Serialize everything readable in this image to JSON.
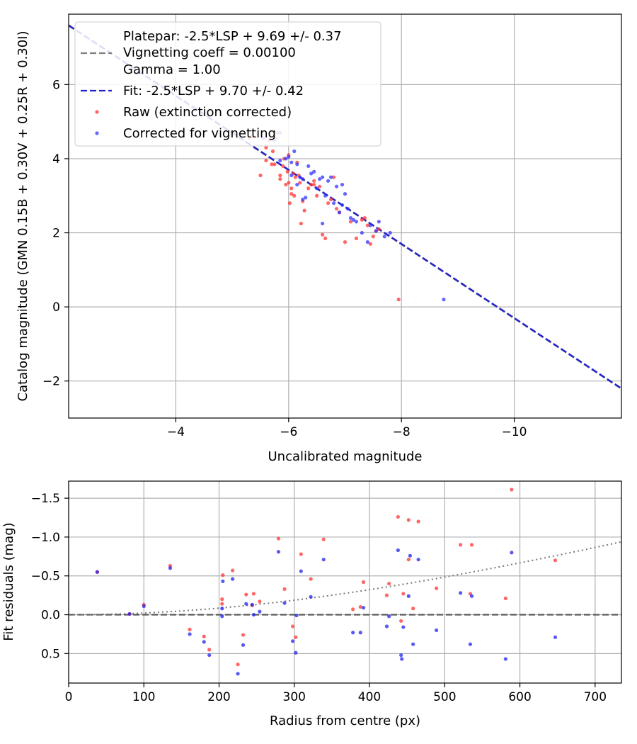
{
  "chart_data": [
    {
      "type": "scatter",
      "xlabel": "Uncalibrated magnitude",
      "ylabel": "Catalog magnitude (GMN 0.15B + 0.30V + 0.25R + 0.30I)",
      "xlim": [
        -2.1,
        -11.9
      ],
      "ylim": [
        7.9,
        -3.0
      ],
      "xticks": [
        -4,
        -6,
        -8,
        -10
      ],
      "xtick_labels": [
        "−4",
        "−6",
        "−8",
        "−10"
      ],
      "yticks": [
        -2,
        0,
        2,
        4,
        6
      ],
      "ytick_labels": [
        "−2",
        "0",
        "2",
        "4",
        "6"
      ],
      "grid": true,
      "legend_position": "top-left",
      "legend": {
        "platepar_line1": "Platepar: -2.5*LSP + 9.69 +/- 0.37",
        "platepar_line2": "Vignetting coeff = 0.00100",
        "platepar_line3": "Gamma = 1.00",
        "fit": "Fit: -2.5*LSP + 9.70 +/- 0.42",
        "raw": "Raw (extinction corrected)",
        "corrected": "Corrected for vignetting"
      },
      "colors": {
        "platepar": "#808080",
        "fit": "#2222cc",
        "raw": "#ff3333",
        "corrected": "#3333ff"
      },
      "lines": [
        {
          "name": "Platepar",
          "slope_lsp": -2.5,
          "intercept": 9.69,
          "style": "dashed"
        },
        {
          "name": "Fit",
          "slope_lsp": -2.5,
          "intercept": 9.7,
          "style": "dashed"
        }
      ],
      "series": [
        {
          "name": "Raw (extinction corrected)",
          "points": [
            [
              -5.3,
              4.55
            ],
            [
              -5.35,
              4.6
            ],
            [
              -5.5,
              3.55
            ],
            [
              -5.6,
              4.3
            ],
            [
              -5.65,
              4.5
            ],
            [
              -5.7,
              3.85
            ],
            [
              -5.72,
              4.2
            ],
            [
              -5.75,
              3.85
            ],
            [
              -5.78,
              4.55
            ],
            [
              -5.8,
              4.7
            ],
            [
              -5.85,
              3.55
            ],
            [
              -5.9,
              3.8
            ],
            [
              -5.92,
              4.0
            ],
            [
              -5.95,
              3.3
            ],
            [
              -5.98,
              3.65
            ],
            [
              -6.0,
              4.1
            ],
            [
              -6.02,
              2.8
            ],
            [
              -6.05,
              3.2
            ],
            [
              -6.08,
              3.6
            ],
            [
              -6.1,
              3.0
            ],
            [
              -6.12,
              3.5
            ],
            [
              -6.15,
              3.9
            ],
            [
              -6.18,
              3.55
            ],
            [
              -6.2,
              3.35
            ],
            [
              -6.22,
              2.25
            ],
            [
              -6.28,
              2.6
            ],
            [
              -6.35,
              3.2
            ],
            [
              -6.4,
              3.3
            ],
            [
              -6.45,
              3.4
            ],
            [
              -6.5,
              3.0
            ],
            [
              -6.55,
              3.25
            ],
            [
              -6.6,
              1.95
            ],
            [
              -6.65,
              1.85
            ],
            [
              -6.7,
              2.8
            ],
            [
              -6.75,
              2.9
            ],
            [
              -6.8,
              3.5
            ],
            [
              -6.9,
              2.55
            ],
            [
              -7.0,
              1.75
            ],
            [
              -7.1,
              2.3
            ],
            [
              -7.2,
              1.85
            ],
            [
              -7.3,
              2.35
            ],
            [
              -7.45,
              1.7
            ],
            [
              -7.5,
              1.9
            ],
            [
              -7.6,
              2.1
            ],
            [
              -7.95,
              0.2
            ],
            [
              -5.6,
              3.95
            ],
            [
              -5.85,
              3.45
            ],
            [
              -6.05,
              3.05
            ],
            [
              -6.25,
              2.85
            ],
            [
              -6.45,
              3.3
            ],
            [
              -6.85,
              2.65
            ],
            [
              -7.35,
              2.4
            ],
            [
              -7.55,
              2.05
            ],
            [
              -7.4,
              2.2
            ],
            [
              -6.0,
              3.35
            ]
          ]
        },
        {
          "name": "Corrected for vignetting",
          "points": [
            [
              -5.55,
              4.55
            ],
            [
              -5.75,
              4.5
            ],
            [
              -5.85,
              4.7
            ],
            [
              -5.85,
              3.95
            ],
            [
              -5.95,
              4.0
            ],
            [
              -6.05,
              3.55
            ],
            [
              -6.1,
              4.2
            ],
            [
              -6.15,
              3.85
            ],
            [
              -6.2,
              3.5
            ],
            [
              -6.25,
              3.45
            ],
            [
              -6.3,
              2.95
            ],
            [
              -6.35,
              3.8
            ],
            [
              -6.45,
              3.65
            ],
            [
              -6.5,
              3.2
            ],
            [
              -6.55,
              3.45
            ],
            [
              -6.6,
              3.5
            ],
            [
              -6.65,
              3.0
            ],
            [
              -6.7,
              3.4
            ],
            [
              -6.75,
              3.5
            ],
            [
              -6.8,
              2.8
            ],
            [
              -6.85,
              3.25
            ],
            [
              -6.9,
              2.55
            ],
            [
              -6.95,
              2.75
            ],
            [
              -7.0,
              3.05
            ],
            [
              -7.05,
              2.65
            ],
            [
              -7.1,
              2.4
            ],
            [
              -7.2,
              2.3
            ],
            [
              -7.3,
              2.0
            ],
            [
              -7.4,
              1.75
            ],
            [
              -7.55,
              2.05
            ],
            [
              -7.6,
              2.3
            ],
            [
              -7.7,
              1.9
            ],
            [
              -7.8,
              2.0
            ],
            [
              -8.75,
              0.2
            ],
            [
              -6.6,
              2.25
            ],
            [
              -6.4,
              3.6
            ],
            [
              -6.25,
              2.9
            ],
            [
              -6.05,
              3.9
            ],
            [
              -6.0,
              4.05
            ],
            [
              -7.15,
              2.35
            ],
            [
              -6.95,
              3.3
            ],
            [
              -7.45,
              2.2
            ],
            [
              -6.15,
              3.3
            ]
          ]
        }
      ]
    },
    {
      "type": "scatter",
      "xlabel": "Radius from centre (px)",
      "ylabel": "Fit residuals (mag)",
      "xlim": [
        0,
        735
      ],
      "ylim": [
        -1.72,
        0.88
      ],
      "xticks": [
        0,
        100,
        200,
        300,
        400,
        500,
        600,
        700
      ],
      "xtick_labels": [
        "0",
        "100",
        "200",
        "300",
        "400",
        "500",
        "600",
        "700"
      ],
      "yticks": [
        0.5,
        0.0,
        -0.5,
        -1.0,
        -1.5
      ],
      "ytick_labels": [
        "0.5",
        "0.0",
        "−0.5",
        "−1.0",
        "−1.5"
      ],
      "grid": true,
      "reference_lines": [
        {
          "name": "zero",
          "value": 0.0,
          "style": "dashed"
        },
        {
          "name": "vignetting",
          "coeff": 0.001,
          "style": "dotted"
        }
      ],
      "colors": {
        "raw": "#ff3333",
        "corrected": "#2222ee",
        "zero": "#555555",
        "vignetting": "#777777"
      },
      "series": [
        {
          "name": "Raw (extinction corrected)",
          "points": [
            [
              38,
              -0.55
            ],
            [
              81,
              -0.01
            ],
            [
              100,
              -0.13
            ],
            [
              135,
              -0.63
            ],
            [
              161,
              0.19
            ],
            [
              180,
              0.28
            ],
            [
              187,
              0.45
            ],
            [
              204,
              -0.14
            ],
            [
              204,
              -0.2
            ],
            [
              205,
              -0.51
            ],
            [
              218,
              -0.57
            ],
            [
              225,
              0.64
            ],
            [
              232,
              0.26
            ],
            [
              236,
              -0.26
            ],
            [
              244,
              -0.12
            ],
            [
              246,
              -0.27
            ],
            [
              254,
              -0.17
            ],
            [
              279,
              -0.98
            ],
            [
              287,
              -0.33
            ],
            [
              298,
              0.15
            ],
            [
              302,
              0.29
            ],
            [
              309,
              -0.78
            ],
            [
              322,
              -0.46
            ],
            [
              339,
              -0.97
            ],
            [
              378,
              -0.07
            ],
            [
              388,
              -0.1
            ],
            [
              392,
              -0.42
            ],
            [
              423,
              -0.25
            ],
            [
              426,
              -0.4
            ],
            [
              438,
              -1.26
            ],
            [
              442,
              0.08
            ],
            [
              445,
              -0.27
            ],
            [
              452,
              -0.71
            ],
            [
              452,
              -1.22
            ],
            [
              458,
              -0.08
            ],
            [
              465,
              -1.2
            ],
            [
              489,
              -0.34
            ],
            [
              521,
              -0.9
            ],
            [
              534,
              -0.27
            ],
            [
              536,
              -0.9
            ],
            [
              581,
              -0.21
            ],
            [
              589,
              -1.61
            ],
            [
              647,
              -0.7
            ]
          ]
        },
        {
          "name": "Corrected for vignetting",
          "points": [
            [
              38,
              -0.55
            ],
            [
              81,
              -0.01
            ],
            [
              100,
              -0.11
            ],
            [
              135,
              -0.6
            ],
            [
              161,
              0.25
            ],
            [
              180,
              0.35
            ],
            [
              187,
              0.52
            ],
            [
              204,
              0.02
            ],
            [
              204,
              -0.08
            ],
            [
              205,
              -0.43
            ],
            [
              218,
              -0.46
            ],
            [
              225,
              0.76
            ],
            [
              232,
              0.39
            ],
            [
              236,
              -0.14
            ],
            [
              244,
              -0.13
            ],
            [
              246,
              0.0
            ],
            [
              254,
              -0.04
            ],
            [
              279,
              -0.81
            ],
            [
              287,
              -0.15
            ],
            [
              298,
              0.34
            ],
            [
              302,
              0.49
            ],
            [
              303,
              0.01
            ],
            [
              309,
              -0.56
            ],
            [
              322,
              -0.23
            ],
            [
              339,
              -0.71
            ],
            [
              378,
              0.23
            ],
            [
              388,
              0.23
            ],
            [
              392,
              -0.09
            ],
            [
              423,
              0.15
            ],
            [
              426,
              0.02
            ],
            [
              438,
              -0.83
            ],
            [
              442,
              0.52
            ],
            [
              443,
              0.57
            ],
            [
              445,
              0.16
            ],
            [
              452,
              -0.24
            ],
            [
              454,
              -0.76
            ],
            [
              458,
              0.38
            ],
            [
              465,
              -0.71
            ],
            [
              489,
              0.2
            ],
            [
              521,
              -0.28
            ],
            [
              534,
              0.38
            ],
            [
              536,
              -0.24
            ],
            [
              581,
              0.57
            ],
            [
              589,
              -0.8
            ],
            [
              647,
              0.29
            ]
          ]
        }
      ]
    }
  ]
}
